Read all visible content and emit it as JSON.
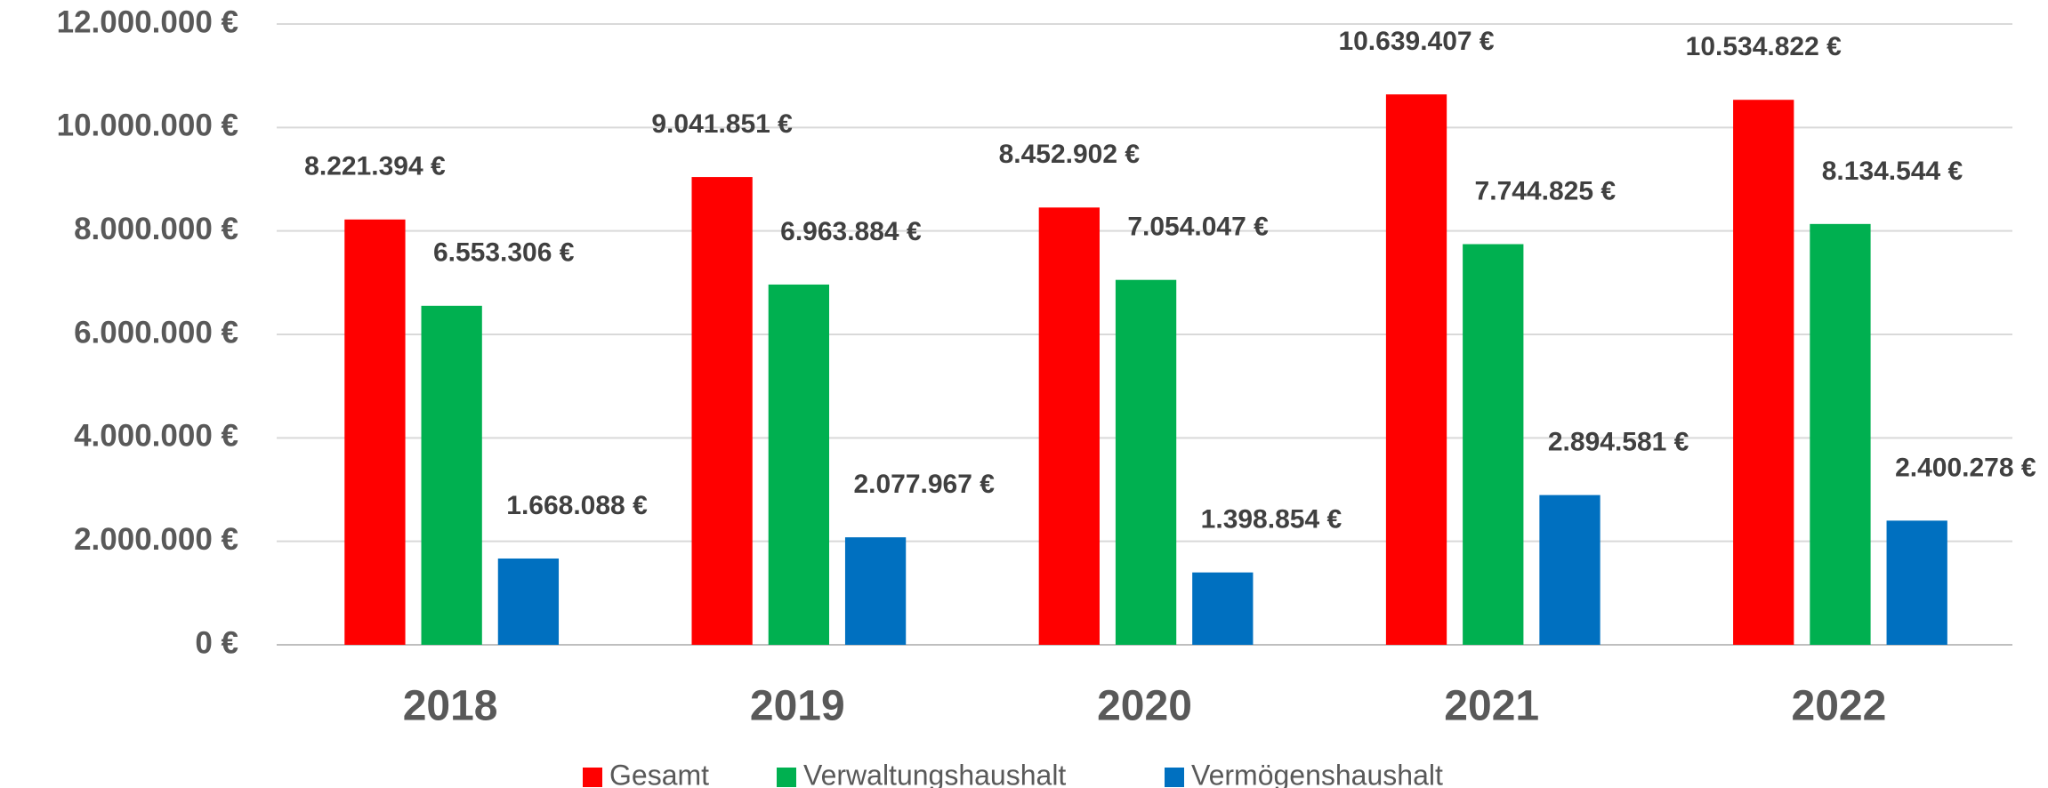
{
  "chart_data": {
    "type": "bar",
    "categories": [
      "2018",
      "2019",
      "2020",
      "2021",
      "2022"
    ],
    "series": [
      {
        "name": "Gesamt",
        "color": "#ff0000",
        "values": [
          8221394,
          9041851,
          8452902,
          10639407,
          10534822
        ],
        "value_labels": [
          "8.221.394 €",
          "9.041.851 €",
          "8.452.902 €",
          "10.639.407 €",
          "10.534.822 €"
        ]
      },
      {
        "name": "Verwaltungshaushalt",
        "color": "#00b050",
        "values": [
          6553306,
          6963884,
          7054047,
          7744825,
          8134544
        ],
        "value_labels": [
          "6.553.306 €",
          "6.963.884 €",
          "7.054.047 €",
          "7.744.825 €",
          "8.134.544 €"
        ]
      },
      {
        "name": "Vermögenshaushalt",
        "color": "#0070c0",
        "values": [
          1668088,
          2077967,
          1398854,
          2894581,
          2400278
        ],
        "value_labels": [
          "1.668.088 €",
          "2.077.967 €",
          "1.398.854 €",
          "2.894.581 €",
          "2.400.278 €"
        ]
      }
    ],
    "ylim": [
      0,
      12000000
    ],
    "yticks": [
      {
        "value": 0,
        "label": "0 €"
      },
      {
        "value": 2000000,
        "label": "2.000.000 €"
      },
      {
        "value": 4000000,
        "label": "4.000.000 €"
      },
      {
        "value": 6000000,
        "label": "6.000.000 €"
      },
      {
        "value": 8000000,
        "label": "8.000.000 €"
      },
      {
        "value": 10000000,
        "label": "10.000.000 €"
      },
      {
        "value": 12000000,
        "label": "12.000.000 €"
      }
    ],
    "grid": true,
    "legend": "bottom"
  }
}
